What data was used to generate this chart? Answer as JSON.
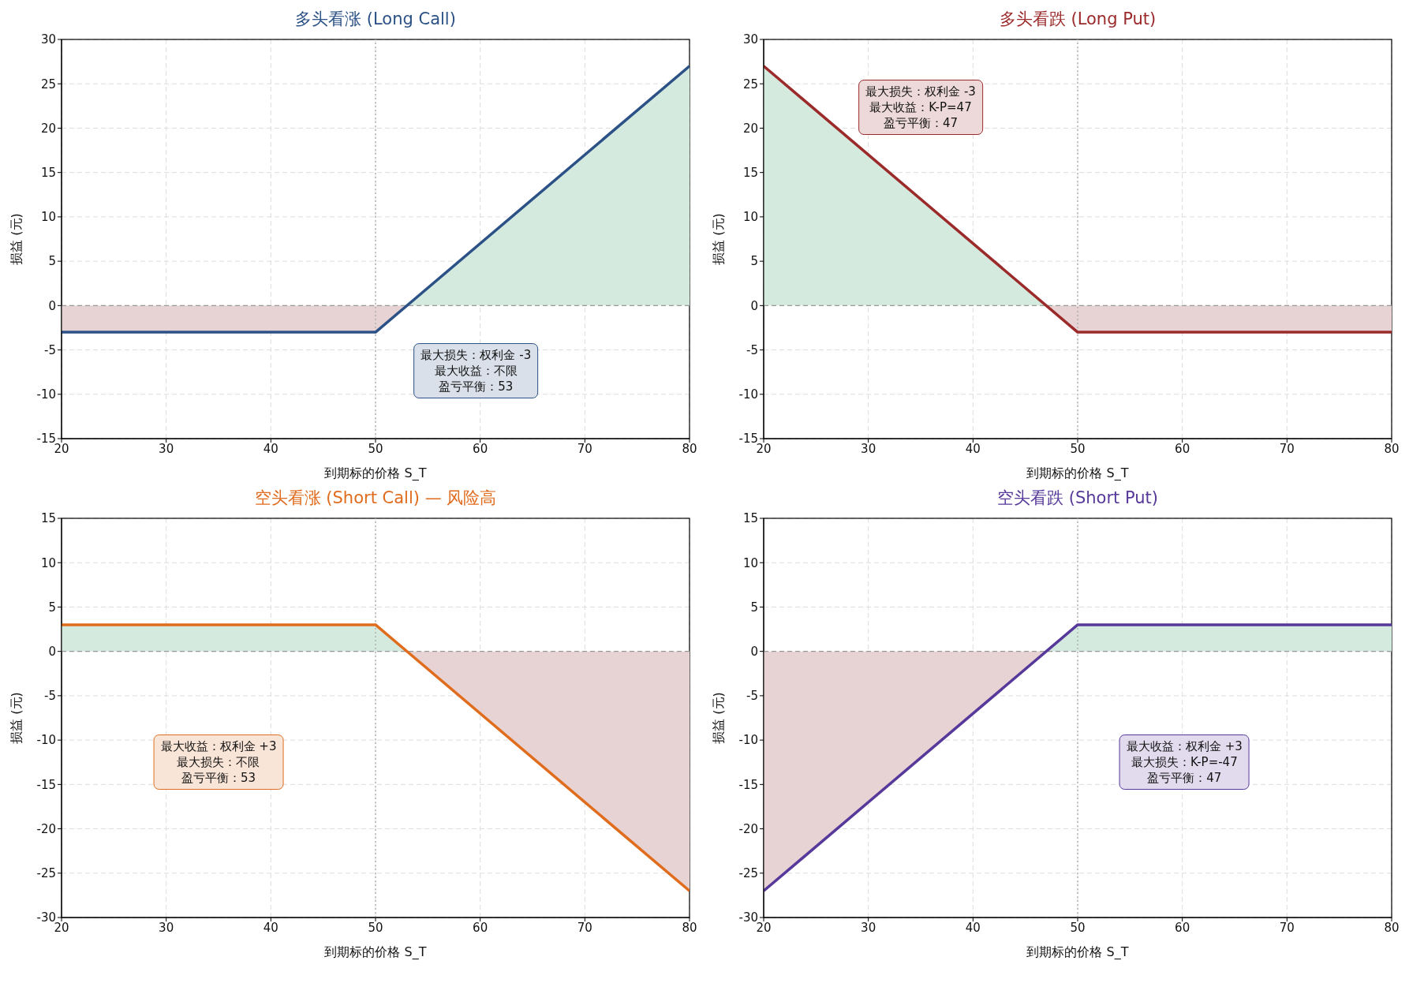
{
  "chart_data": [
    {
      "type": "line",
      "title": "多头看涨 (Long Call)",
      "xlabel": "到期标的价格 S_T",
      "ylabel": "损益 (元)",
      "xlim": [
        20,
        80
      ],
      "xticks": [
        20,
        30,
        40,
        50,
        60,
        70,
        80
      ],
      "ylim": [
        -15,
        30
      ],
      "yticks": [
        -15,
        -10,
        -5,
        0,
        5,
        10,
        15,
        20,
        25,
        30
      ],
      "grid": true,
      "line_style": "solid",
      "marker": "none",
      "series": [
        {
          "type": "area",
          "color": "#d5eadf",
          "x": [
            20,
            50,
            53,
            80
          ],
          "values": [
            0,
            0,
            0,
            27
          ]
        },
        {
          "type": "area",
          "color": "#e8d3d4",
          "x": [
            20,
            50,
            53,
            80
          ],
          "values": [
            -3,
            -3,
            0,
            0
          ]
        },
        {
          "color": "#2b5186",
          "x": [
            20,
            50,
            80
          ],
          "values": [
            -3,
            -3,
            27
          ]
        }
      ],
      "ref_lines": [
        {
          "axis": "y",
          "value": 0,
          "color": "#999999",
          "line_style": "dashed"
        },
        {
          "axis": "x",
          "value": 50,
          "color": "#aaaaaa",
          "line_style": "dotted"
        }
      ],
      "annotations": [
        "最大损失：权利金 -3",
        "最大收益：不限",
        "盈亏平衡：53"
      ]
    },
    {
      "type": "line",
      "title": "多头看跌 (Long Put)",
      "xlabel": "到期标的价格 S_T",
      "ylabel": "损益 (元)",
      "xlim": [
        20,
        80
      ],
      "xticks": [
        20,
        30,
        40,
        50,
        60,
        70,
        80
      ],
      "ylim": [
        -15,
        30
      ],
      "yticks": [
        -15,
        -10,
        -5,
        0,
        5,
        10,
        15,
        20,
        25,
        30
      ],
      "grid": true,
      "line_style": "solid",
      "marker": "none",
      "series": [
        {
          "type": "area",
          "color": "#d5eadf",
          "x": [
            20,
            47,
            50,
            80
          ],
          "values": [
            27,
            0,
            0,
            0
          ]
        },
        {
          "type": "area",
          "color": "#e8d3d4",
          "x": [
            20,
            47,
            50,
            80
          ],
          "values": [
            0,
            0,
            -3,
            -3
          ]
        },
        {
          "color": "#9b2a2a",
          "x": [
            20,
            50,
            80
          ],
          "values": [
            27,
            -3,
            -3
          ]
        }
      ],
      "ref_lines": [
        {
          "axis": "y",
          "value": 0,
          "color": "#999999",
          "line_style": "dashed"
        },
        {
          "axis": "x",
          "value": 50,
          "color": "#aaaaaa",
          "line_style": "dotted"
        }
      ],
      "annotations": [
        "最大损失：权利金 -3",
        "最大收益：K-P=47",
        "盈亏平衡：47"
      ]
    },
    {
      "type": "line",
      "title": "空头看涨 (Short Call) — 风险高",
      "xlabel": "到期标的价格 S_T",
      "ylabel": "损益 (元)",
      "xlim": [
        20,
        80
      ],
      "xticks": [
        20,
        30,
        40,
        50,
        60,
        70,
        80
      ],
      "ylim": [
        -30,
        15
      ],
      "yticks": [
        -30,
        -25,
        -20,
        -15,
        -10,
        -5,
        0,
        5,
        10,
        15
      ],
      "grid": true,
      "line_style": "solid",
      "marker": "none",
      "series": [
        {
          "type": "area",
          "color": "#d5eadf",
          "x": [
            20,
            50,
            53,
            80
          ],
          "values": [
            3,
            3,
            0,
            0
          ]
        },
        {
          "type": "area",
          "color": "#e8d3d4",
          "x": [
            20,
            50,
            53,
            80
          ],
          "values": [
            0,
            0,
            0,
            -27
          ]
        },
        {
          "color": "#e06c1e",
          "x": [
            20,
            50,
            80
          ],
          "values": [
            3,
            3,
            -27
          ]
        }
      ],
      "ref_lines": [
        {
          "axis": "y",
          "value": 0,
          "color": "#999999",
          "line_style": "dashed"
        },
        {
          "axis": "x",
          "value": 50,
          "color": "#aaaaaa",
          "line_style": "dotted"
        }
      ],
      "annotations": [
        "最大收益：权利金 +3",
        "最大损失：不限",
        "盈亏平衡：53"
      ]
    },
    {
      "type": "line",
      "title": "空头看跌 (Short Put)",
      "xlabel": "到期标的价格 S_T",
      "ylabel": "损益 (元)",
      "xlim": [
        20,
        80
      ],
      "xticks": [
        20,
        30,
        40,
        50,
        60,
        70,
        80
      ],
      "ylim": [
        -30,
        15
      ],
      "yticks": [
        -30,
        -25,
        -20,
        -15,
        -10,
        -5,
        0,
        5,
        10,
        15
      ],
      "grid": true,
      "line_style": "solid",
      "marker": "none",
      "series": [
        {
          "type": "area",
          "color": "#d5eadf",
          "x": [
            20,
            47,
            50,
            80
          ],
          "values": [
            0,
            0,
            3,
            3
          ]
        },
        {
          "type": "area",
          "color": "#e8d3d4",
          "x": [
            20,
            47,
            50,
            80
          ],
          "values": [
            -27,
            0,
            0,
            0
          ]
        },
        {
          "color": "#56399a",
          "x": [
            20,
            50,
            80
          ],
          "values": [
            -27,
            3,
            3
          ]
        }
      ],
      "ref_lines": [
        {
          "axis": "y",
          "value": 0,
          "color": "#999999",
          "line_style": "dashed"
        },
        {
          "axis": "x",
          "value": 50,
          "color": "#aaaaaa",
          "line_style": "dotted"
        }
      ],
      "annotations": [
        "最大收益：权利金 +3",
        "最大损失：K-P=-47",
        "盈亏平衡：47"
      ]
    }
  ]
}
